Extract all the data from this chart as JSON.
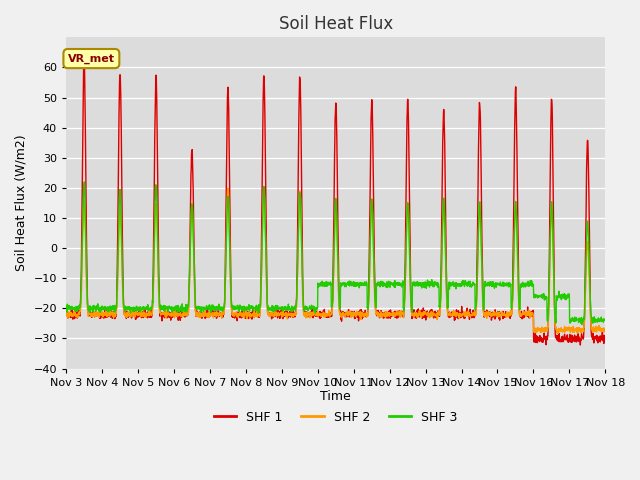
{
  "title": "Soil Heat Flux",
  "xlabel": "Time",
  "ylabel": "Soil Heat Flux (W/m2)",
  "ylim": [
    -40,
    70
  ],
  "yticks": [
    -40,
    -30,
    -20,
    -10,
    0,
    10,
    20,
    30,
    40,
    50,
    60
  ],
  "bg_color": "#dcdcdc",
  "line_colors": [
    "#dd0000",
    "#ff9900",
    "#22cc00"
  ],
  "legend_labels": [
    "SHF 1",
    "SHF 2",
    "SHF 3"
  ],
  "annotation_text": "VR_met",
  "num_days": 15,
  "x_tick_labels": [
    "Nov 3",
    "Nov 4",
    "Nov 5",
    "Nov 6",
    "Nov 7",
    "Nov 8",
    "Nov 9",
    "Nov 10",
    "Nov 11",
    "Nov 12",
    "Nov 13",
    "Nov 14",
    "Nov 15",
    "Nov 16",
    "Nov 17",
    "Nov 18"
  ],
  "day_peaks_shf1": [
    62,
    58,
    57,
    33,
    53,
    57,
    57,
    49,
    49,
    49,
    46,
    49,
    53,
    50,
    36,
    0
  ],
  "day_peaks_shf2": [
    15,
    12,
    14,
    14,
    20,
    20,
    19,
    13,
    15,
    15,
    14,
    14,
    14,
    13,
    2,
    0
  ],
  "day_peaks_shf3": [
    22,
    19,
    21,
    15,
    17,
    20,
    19,
    16,
    16,
    15,
    16,
    15,
    15,
    15,
    9,
    0
  ],
  "night_shf1": -22,
  "night_shf2": -22,
  "night_shf3": -20,
  "late_night_shf1": -30,
  "late_night_shf2": -27,
  "late_night_shf3": -24,
  "title_fontsize": 12,
  "axis_label_fontsize": 9,
  "tick_fontsize": 8,
  "legend_fontsize": 9
}
